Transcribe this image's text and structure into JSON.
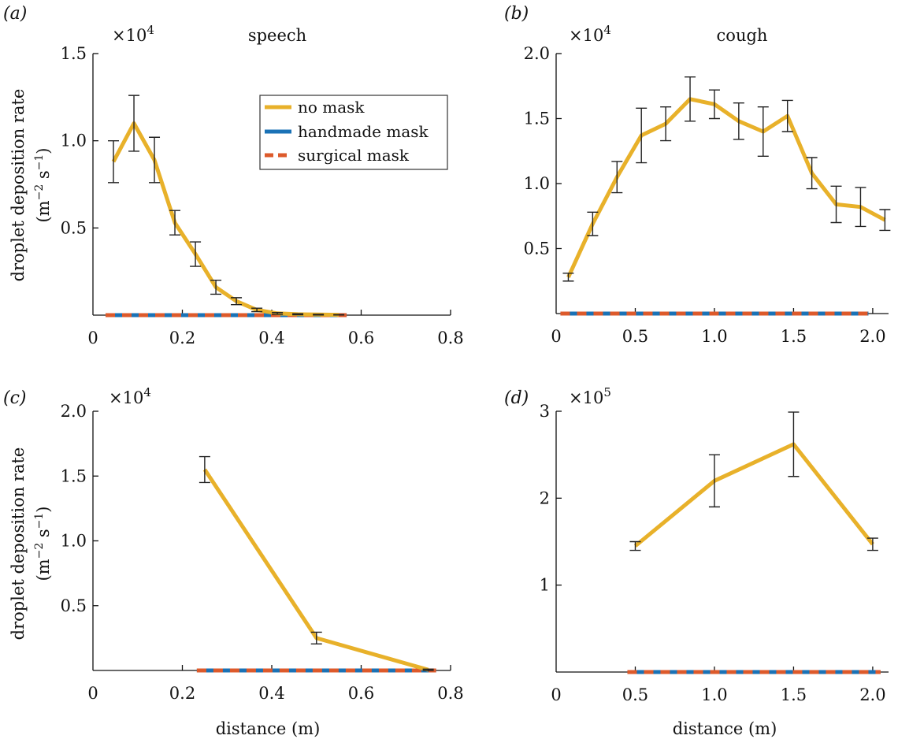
{
  "colors": {
    "no_mask": "#e8b12a",
    "handmade_mask": "#1a72b6",
    "surgical_mask": "#dd5a2b",
    "axis": "#111111",
    "errorbar": "#222222"
  },
  "ylabel_line1": "droplet deposition rate",
  "ylabel_line2": "(m",
  "ylabel_exp1": "−2",
  "ylabel_mid": " s",
  "ylabel_exp2": "−1",
  "ylabel_end": ")",
  "xlabel": "distance (m)",
  "legend": {
    "no_mask": "no mask",
    "handmade_mask": "handmade mask",
    "surgical_mask": "surgical mask"
  },
  "chart_data": [
    {
      "panel": "(a)",
      "title": "speech",
      "type": "line",
      "scale_base": "×10",
      "scale_exp": "4",
      "scale": 10000,
      "xlim": [
        0,
        0.8
      ],
      "ylim": [
        0,
        1.5
      ],
      "xticks": [
        0,
        0.2,
        0.4,
        0.6,
        0.8
      ],
      "xtick_labels": [
        "0",
        "0.2",
        "0.4",
        "0.6",
        "0.8"
      ],
      "yticks": [
        0.5,
        1.0,
        1.5
      ],
      "ytick_labels": [
        "0.5",
        "1.0",
        "1.5"
      ],
      "series": [
        {
          "name": "no mask",
          "style": "solid",
          "x": [
            0.0458,
            0.0917,
            0.1375,
            0.1833,
            0.2292,
            0.275,
            0.3208,
            0.3667,
            0.4125,
            0.4583,
            0.5042,
            0.55
          ],
          "y": [
            0.88,
            1.1,
            0.89,
            0.53,
            0.35,
            0.16,
            0.08,
            0.03,
            0.01,
            0.005,
            0.003,
            0.002
          ],
          "err": [
            0.12,
            0.16,
            0.13,
            0.07,
            0.07,
            0.04,
            0.02,
            0.01,
            0.005,
            0.003,
            0.002,
            0.001
          ]
        },
        {
          "name": "handmade mask",
          "style": "solid",
          "x": [
            0.0458,
            0.55
          ],
          "y": [
            0,
            0
          ]
        },
        {
          "name": "surgical mask",
          "style": "dashed",
          "x": [
            0.0458,
            0.55
          ],
          "y": [
            0,
            0
          ]
        }
      ]
    },
    {
      "panel": "(b)",
      "title": "cough",
      "type": "line",
      "scale_base": "×10",
      "scale_exp": "4",
      "scale": 10000,
      "xlim": [
        0,
        2.1
      ],
      "ylim": [
        0,
        2.0
      ],
      "xticks": [
        0,
        0.5,
        1.0,
        1.5,
        2.0
      ],
      "xtick_labels": [
        "0",
        "0.5",
        "1.0",
        "1.5",
        "2.0"
      ],
      "yticks": [
        0.5,
        1.0,
        1.5,
        2.0
      ],
      "ytick_labels": [
        "0.5",
        "1.0",
        "1.5",
        "2.0"
      ],
      "series": [
        {
          "name": "no mask",
          "style": "solid",
          "x": [
            0.077,
            0.2308,
            0.3846,
            0.5385,
            0.6923,
            0.8462,
            1.0,
            1.1538,
            1.3077,
            1.4615,
            1.6154,
            1.7692,
            1.9231,
            2.077
          ],
          "y": [
            0.28,
            0.69,
            1.05,
            1.37,
            1.46,
            1.65,
            1.61,
            1.48,
            1.4,
            1.52,
            1.08,
            0.84,
            0.82,
            0.72
          ],
          "err": [
            0.03,
            0.09,
            0.12,
            0.21,
            0.13,
            0.17,
            0.11,
            0.14,
            0.19,
            0.12,
            0.12,
            0.14,
            0.15,
            0.08
          ]
        },
        {
          "name": "handmade mask",
          "style": "solid",
          "x": [
            0.077,
            1.9231
          ],
          "y": [
            0,
            0
          ]
        },
        {
          "name": "surgical mask",
          "style": "dashed",
          "x": [
            0.077,
            1.9231
          ],
          "y": [
            0,
            0
          ]
        }
      ]
    },
    {
      "panel": "(c)",
      "title": "",
      "type": "line",
      "scale_base": "×10",
      "scale_exp": "4",
      "scale": 10000,
      "xlim": [
        0,
        0.8
      ],
      "ylim": [
        0,
        2.0
      ],
      "xticks": [
        0,
        0.2,
        0.4,
        0.6,
        0.8
      ],
      "xtick_labels": [
        "0",
        "0.2",
        "0.4",
        "0.6",
        "0.8"
      ],
      "yticks": [
        0.5,
        1.0,
        1.5,
        2.0
      ],
      "ytick_labels": [
        "0.5",
        "1.0",
        "1.5",
        "2.0"
      ],
      "series": [
        {
          "name": "no mask",
          "style": "solid",
          "x": [
            0.25,
            0.5,
            0.75
          ],
          "y": [
            1.55,
            0.25,
            0.005
          ],
          "err": [
            0.1,
            0.045,
            0.005
          ]
        },
        {
          "name": "handmade mask",
          "style": "solid",
          "x": [
            0.25,
            0.75
          ],
          "y": [
            0,
            0
          ]
        },
        {
          "name": "surgical mask",
          "style": "dashed",
          "x": [
            0.25,
            0.75
          ],
          "y": [
            0,
            0
          ]
        }
      ]
    },
    {
      "panel": "(d)",
      "title": "",
      "type": "line",
      "scale_base": "×10",
      "scale_exp": "5",
      "scale": 100000,
      "xlim": [
        0,
        2.1
      ],
      "ylim": [
        0,
        3.0
      ],
      "xticks": [
        0,
        0.5,
        1.0,
        1.5,
        2.0
      ],
      "xtick_labels": [
        "0",
        "0.5",
        "1.0",
        "1.5",
        "2.0"
      ],
      "yticks": [
        1,
        2,
        3
      ],
      "ytick_labels": [
        "1",
        "2",
        "3"
      ],
      "series": [
        {
          "name": "no mask",
          "style": "solid",
          "x": [
            0.5,
            1.0,
            1.5,
            2.0
          ],
          "y": [
            1.45,
            2.2,
            2.62,
            1.47
          ],
          "err": [
            0.05,
            0.3,
            0.37,
            0.07
          ]
        },
        {
          "name": "handmade mask",
          "style": "solid",
          "x": [
            0.5,
            2.0
          ],
          "y": [
            0,
            0
          ]
        },
        {
          "name": "surgical mask",
          "style": "dashed",
          "x": [
            0.5,
            2.0
          ],
          "y": [
            0,
            0
          ]
        }
      ]
    }
  ]
}
